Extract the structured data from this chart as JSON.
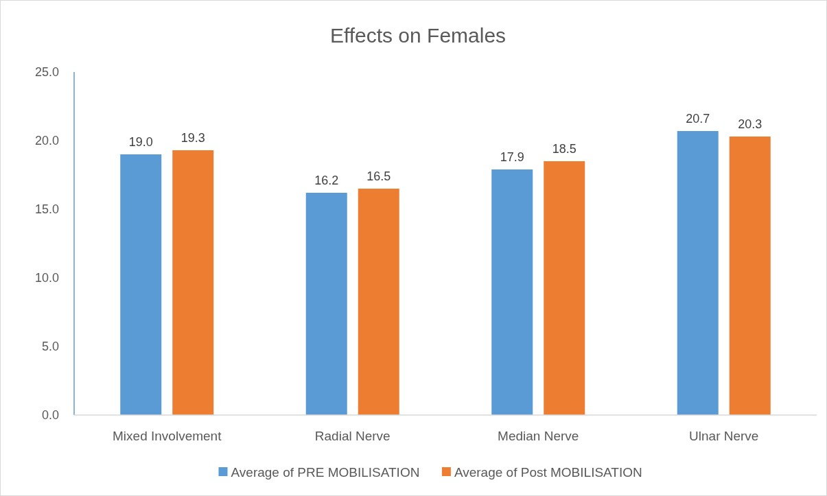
{
  "chart_data": {
    "type": "bar",
    "title": "Effects on Females",
    "categories": [
      "Mixed Involvement",
      "Radial Nerve",
      "Median Nerve",
      "Ulnar Nerve"
    ],
    "series": [
      {
        "name": "Average of PRE MOBILISATION",
        "color": "#5b9bd5",
        "values": [
          19.0,
          16.2,
          17.9,
          20.7
        ],
        "value_labels": [
          "19.0",
          "16.2",
          "17.9",
          "20.7"
        ]
      },
      {
        "name": "Average of Post MOBILISATION",
        "color": "#ed7d31",
        "values": [
          19.3,
          16.5,
          18.5,
          20.3
        ],
        "value_labels": [
          "19.3",
          "16.5",
          "18.5",
          "20.3"
        ]
      }
    ],
    "ylim": [
      0,
      25
    ],
    "yticks": [
      {
        "value": 0,
        "label": "0.0"
      },
      {
        "value": 5,
        "label": "5.0"
      },
      {
        "value": 10,
        "label": "10.0"
      },
      {
        "value": 15,
        "label": "15.0"
      },
      {
        "value": 20,
        "label": "20.0"
      },
      {
        "value": 25,
        "label": "25.0"
      }
    ],
    "grid": false,
    "legend": "bottom"
  }
}
